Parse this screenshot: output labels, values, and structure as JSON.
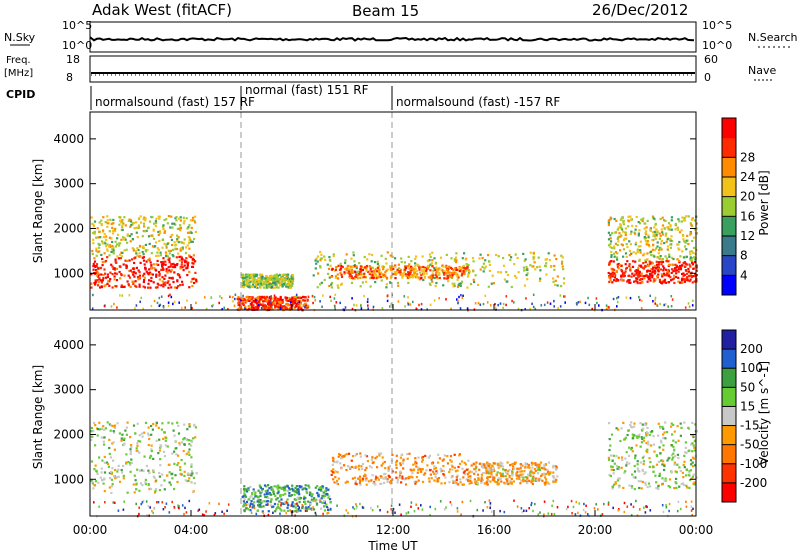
{
  "header": {
    "radar": "Adak West (fitACF)",
    "beam": "Beam 15",
    "date": "26/Dec/2012"
  },
  "top_panels": {
    "nsky_label": "N.Sky",
    "nsearch_label": "N.Search",
    "nsky_ticks": [
      "10^5",
      "10^0"
    ],
    "freq_label": "Freq.",
    "freq_unit": "[MHz]",
    "freq_ticks": [
      "18",
      "8"
    ],
    "nave_label": "Nave",
    "nave_ticks": [
      "60",
      "0"
    ],
    "cpid_label": "CPID",
    "cpid_segments": [
      {
        "text": "normalsound (fast) 157 RF",
        "start_h": 0,
        "end_h": 6
      },
      {
        "text": "normal (fast) 151 RF",
        "start_h": 6,
        "end_h": 12
      },
      {
        "text": "normalsound (fast) -157 RF",
        "start_h": 12,
        "end_h": 24
      }
    ]
  },
  "chart_data": [
    {
      "type": "heatmap",
      "title": "Power",
      "ylabel": "Slant Range [km]",
      "yticks": [
        1000,
        2000,
        3000,
        4000
      ],
      "ylim": [
        180,
        4600
      ],
      "colorbar_label": "Power [dB]",
      "colorbar_ticks": [
        4,
        8,
        12,
        16,
        20,
        24,
        28
      ],
      "colorbar_colors": [
        "#0000ff",
        "#2a46c8",
        "#3a7a8a",
        "#3aa060",
        "#9acd32",
        "#f2c21a",
        "#ff8c00",
        "#ff2a00",
        "#ff0000"
      ],
      "regions": [
        {
          "x": [
            0,
            4.2
          ],
          "r": [
            700,
            1400
          ],
          "level": 0.9
        },
        {
          "x": [
            0,
            4.2
          ],
          "r": [
            1400,
            2300
          ],
          "level": 0.55
        },
        {
          "x": [
            5.8,
            8.6
          ],
          "r": [
            200,
            500
          ],
          "level": 0.85
        },
        {
          "x": [
            6,
            8
          ],
          "r": [
            700,
            1000
          ],
          "level": 0.5
        },
        {
          "x": [
            8.8,
            18.8
          ],
          "r": [
            700,
            1500
          ],
          "level": 0.55
        },
        {
          "x": [
            9.5,
            15
          ],
          "r": [
            900,
            1200
          ],
          "level": 0.75
        },
        {
          "x": [
            20.5,
            24
          ],
          "r": [
            800,
            1300
          ],
          "level": 0.9
        },
        {
          "x": [
            20.5,
            24
          ],
          "r": [
            1300,
            2300
          ],
          "level": 0.55
        }
      ]
    },
    {
      "type": "heatmap",
      "title": "Velocity",
      "ylabel": "Slant Range [km]",
      "xlabel": "Time UT",
      "xticks": [
        "00:00",
        "04:00",
        "08:00",
        "12:00",
        "16:00",
        "20:00",
        "00:00"
      ],
      "xlim_hours": [
        0,
        24
      ],
      "yticks": [
        1000,
        2000,
        3000,
        4000
      ],
      "ylim": [
        180,
        4600
      ],
      "colorbar_label": "Velocity [m s^-1]",
      "colorbar_ticks": [
        200,
        100,
        50,
        15,
        -15,
        -50,
        -100,
        -200
      ],
      "colorbar_colors": [
        "#2020a0",
        "#1f5fd0",
        "#3ca040",
        "#66cc33",
        "#c8c8c8",
        "#ff9900",
        "#ff7700",
        "#ff3300",
        "#ff0000"
      ],
      "regions": [
        {
          "x": [
            0,
            4.2
          ],
          "r": [
            700,
            2300
          ],
          "level": 0.45
        },
        {
          "x": [
            6,
            9.5
          ],
          "r": [
            300,
            900
          ],
          "level": 0.3
        },
        {
          "x": [
            9.5,
            15
          ],
          "r": [
            900,
            1600
          ],
          "level": 0.65
        },
        {
          "x": [
            15,
            18.5
          ],
          "r": [
            900,
            1400
          ],
          "level": 0.6
        },
        {
          "x": [
            20.5,
            24
          ],
          "r": [
            800,
            2300
          ],
          "level": 0.45
        }
      ]
    }
  ]
}
